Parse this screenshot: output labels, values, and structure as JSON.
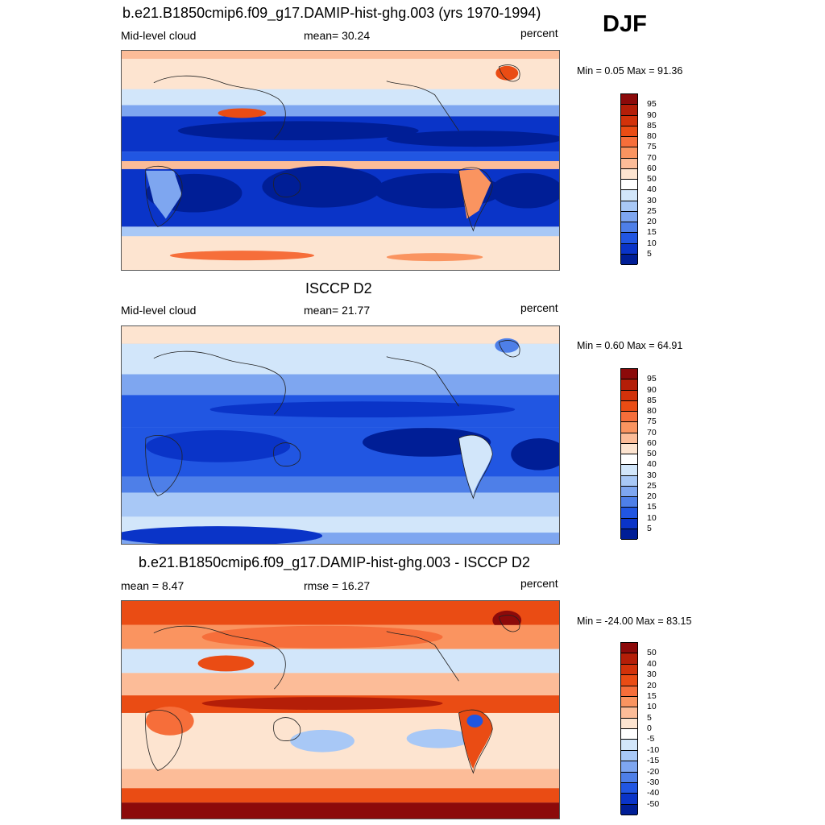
{
  "season": "DJF",
  "panels": [
    {
      "title": "b.e21.B1850cmip6.f09_g17.DAMIP-hist-ghg.003 (yrs 1970-1994)",
      "left_label": "Mid-level cloud",
      "center_label": "mean=  30.24",
      "right_label": "percent",
      "minmax": "Min =   0.05 Max =  91.36",
      "kind": "model"
    },
    {
      "title": "ISCCP D2",
      "left_label": "Mid-level cloud",
      "center_label": "mean=  21.77",
      "right_label": "percent",
      "minmax": "Min =   0.60 Max =  64.91",
      "kind": "obs"
    },
    {
      "title": "b.e21.B1850cmip6.f09_g17.DAMIP-hist-ghg.003 - ISCCP D2",
      "left_label": "mean =   8.47",
      "center_label": "rmse =  16.27",
      "right_label": "percent",
      "minmax": "Min = -24.00 Max =  83.15",
      "kind": "diff"
    }
  ],
  "colorbar_abs": {
    "labels": [
      "95",
      "90",
      "85",
      "80",
      "75",
      "70",
      "60",
      "50",
      "40",
      "30",
      "25",
      "20",
      "15",
      "10",
      "5"
    ],
    "colors": [
      "#8c0a0a",
      "#b41e08",
      "#d2320a",
      "#ea4c14",
      "#f66e3a",
      "#fa9460",
      "#fcbc98",
      "#fde4d0",
      "#ffffff",
      "#d2e6fa",
      "#a8c8f6",
      "#7ea6f0",
      "#4e7fe8",
      "#2156e2",
      "#0a34c8",
      "#001e96"
    ]
  },
  "colorbar_diff": {
    "labels": [
      "50",
      "40",
      "30",
      "20",
      "15",
      "10",
      "5",
      "0",
      "-5",
      "-10",
      "-15",
      "-20",
      "-30",
      "-40",
      "-50"
    ],
    "colors": [
      "#8c0a0a",
      "#b41e08",
      "#d2320a",
      "#ea4c14",
      "#f66e3a",
      "#fa9460",
      "#fcbc98",
      "#fde4d0",
      "#ffffff",
      "#d2e6fa",
      "#a8c8f6",
      "#7ea6f0",
      "#4e7fe8",
      "#2156e2",
      "#0a34c8",
      "#001e96"
    ]
  }
}
